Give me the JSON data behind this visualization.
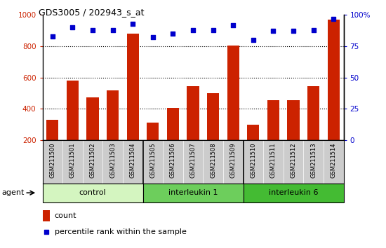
{
  "title": "GDS3005 / 202943_s_at",
  "samples": [
    "GSM211500",
    "GSM211501",
    "GSM211502",
    "GSM211503",
    "GSM211504",
    "GSM211505",
    "GSM211506",
    "GSM211507",
    "GSM211508",
    "GSM211509",
    "GSM211510",
    "GSM211511",
    "GSM211512",
    "GSM211513",
    "GSM211514"
  ],
  "counts": [
    330,
    580,
    475,
    520,
    880,
    310,
    405,
    545,
    500,
    805,
    300,
    455,
    455,
    545,
    970
  ],
  "percentiles": [
    83,
    90,
    88,
    88,
    93,
    82,
    85,
    88,
    88,
    92,
    80,
    87,
    87,
    88,
    97
  ],
  "groups": [
    {
      "label": "control",
      "start": 0,
      "end": 4,
      "color": "#d4f5c0"
    },
    {
      "label": "interleukin 1",
      "start": 5,
      "end": 9,
      "color": "#6dce5c"
    },
    {
      "label": "interleukin 6",
      "start": 10,
      "end": 14,
      "color": "#44bb33"
    }
  ],
  "bar_color": "#cc2200",
  "dot_color": "#0000cc",
  "ylim_left": [
    200,
    1000
  ],
  "ylim_right": [
    0,
    100
  ],
  "yticks_left": [
    200,
    400,
    600,
    800,
    1000
  ],
  "yticks_right": [
    0,
    25,
    50,
    75,
    100
  ],
  "grid_color": "black",
  "background_color": "white",
  "tick_color_left": "#cc2200",
  "tick_color_right": "#0000cc",
  "label_area_color": "#cccccc",
  "fig_width": 5.5,
  "fig_height": 3.54,
  "dpi": 100
}
